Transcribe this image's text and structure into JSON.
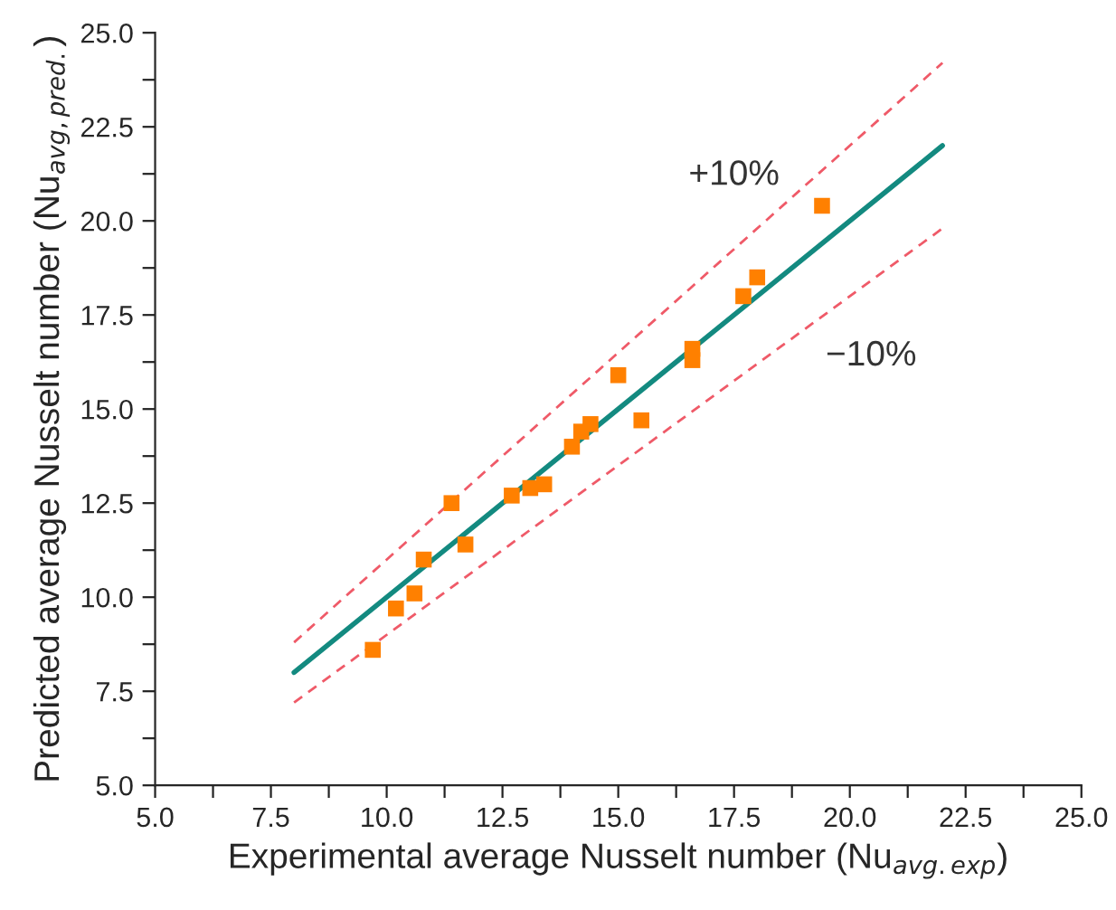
{
  "chart_data": {
    "type": "scatter",
    "xlabel": "Experimental average Nusselt number (Nu$_{avg.exp}$)",
    "ylabel": "Predicted average Nusselt number (Nu$_{avg,pred.}$)",
    "xlim": [
      5.0,
      25.0
    ],
    "ylim": [
      5.0,
      25.0
    ],
    "xticks": [
      {
        "value": 5.0,
        "label": "5.0"
      },
      {
        "value": 6.25,
        "label": null
      },
      {
        "value": 7.5,
        "label": "7.5"
      },
      {
        "value": 8.75,
        "label": null
      },
      {
        "value": 10.0,
        "label": "10.0"
      },
      {
        "value": 11.25,
        "label": null
      },
      {
        "value": 12.5,
        "label": "12.5"
      },
      {
        "value": 13.75,
        "label": null
      },
      {
        "value": 15.0,
        "label": "15.0"
      },
      {
        "value": 16.25,
        "label": null
      },
      {
        "value": 17.5,
        "label": "17.5"
      },
      {
        "value": 18.75,
        "label": null
      },
      {
        "value": 20.0,
        "label": "20.0"
      },
      {
        "value": 21.25,
        "label": null
      },
      {
        "value": 22.5,
        "label": "22.5"
      },
      {
        "value": 23.75,
        "label": null
      },
      {
        "value": 25.0,
        "label": "25.0"
      }
    ],
    "yticks": [
      {
        "value": 5.0,
        "label": "5.0"
      },
      {
        "value": 6.25,
        "label": null
      },
      {
        "value": 7.5,
        "label": "7.5"
      },
      {
        "value": 8.75,
        "label": null
      },
      {
        "value": 10.0,
        "label": "10.0"
      },
      {
        "value": 11.25,
        "label": null
      },
      {
        "value": 12.5,
        "label": "12.5"
      },
      {
        "value": 13.75,
        "label": null
      },
      {
        "value": 15.0,
        "label": "15.0"
      },
      {
        "value": 16.25,
        "label": null
      },
      {
        "value": 17.5,
        "label": "17.5"
      },
      {
        "value": 18.75,
        "label": null
      },
      {
        "value": 20.0,
        "label": "20.0"
      },
      {
        "value": 21.25,
        "label": null
      },
      {
        "value": 22.5,
        "label": "22.5"
      },
      {
        "value": 23.75,
        "label": null
      },
      {
        "value": 25.0,
        "label": "25.0"
      }
    ],
    "grid": false,
    "legend": false,
    "series": [
      {
        "type": "line",
        "color": "#ef5a68",
        "line_style": "dashed",
        "marker": "none",
        "x": [
          8,
          22
        ],
        "values": [
          8.8,
          24.2
        ]
      },
      {
        "type": "line",
        "color": "#ef5a68",
        "line_style": "dashed",
        "marker": "none",
        "x": [
          8,
          22
        ],
        "values": [
          7.2,
          19.8
        ]
      },
      {
        "type": "line",
        "color": "#138a80",
        "line_style": "solid",
        "marker": "none",
        "x": [
          8,
          22
        ],
        "values": [
          8,
          22
        ]
      },
      {
        "color": "#ff8000",
        "marker": "square",
        "x": [
          9.7,
          10.2,
          10.6,
          10.8,
          11.4,
          11.7,
          12.7,
          13.1,
          13.4,
          14.0,
          14.2,
          14.4,
          15.0,
          15.5,
          16.6,
          16.6,
          17.7,
          18.0,
          19.4
        ],
        "values": [
          8.6,
          9.7,
          10.1,
          11.0,
          12.5,
          11.4,
          12.7,
          12.9,
          13.0,
          14.0,
          14.4,
          14.6,
          15.9,
          14.7,
          16.6,
          16.3,
          18.0,
          18.5,
          20.4
        ]
      }
    ],
    "annotations": [
      "+10%",
      "−10%"
    ]
  }
}
